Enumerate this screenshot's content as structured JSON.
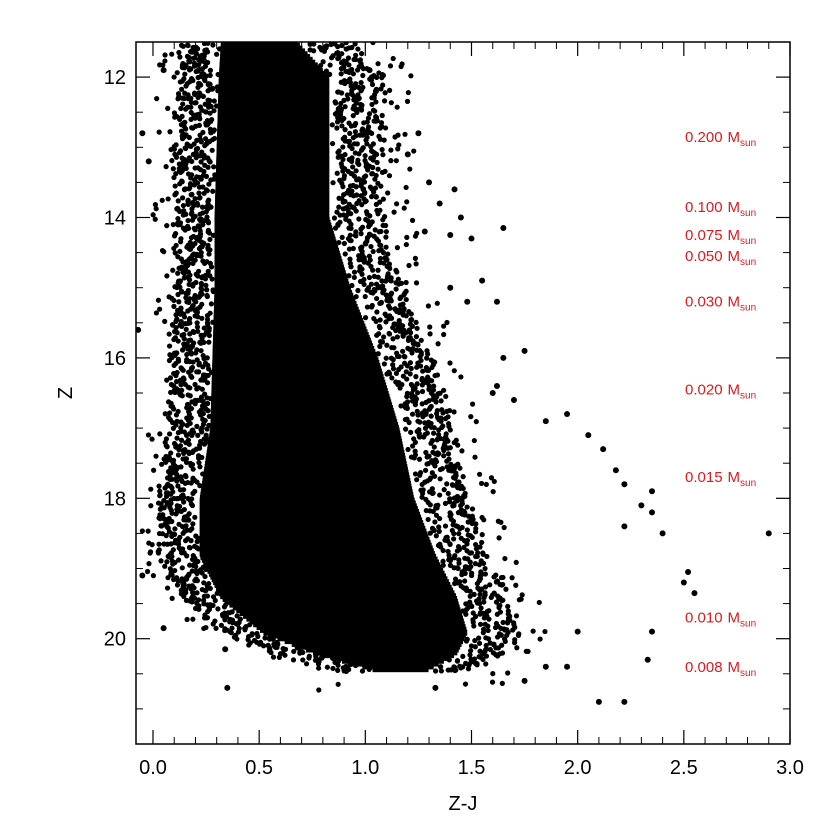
{
  "chart_data": {
    "type": "scatter",
    "title": "",
    "xlabel": "Z-J",
    "ylabel": "Z",
    "xlim": [
      -0.08,
      3.0
    ],
    "ylim": [
      21.5,
      11.5
    ],
    "y_inverted": true,
    "xticks": [
      0.0,
      0.5,
      1.0,
      1.5,
      2.0,
      2.5,
      3.0
    ],
    "xtick_labels": [
      "0.0",
      "0.5",
      "1.0",
      "1.5",
      "2.0",
      "2.5",
      "3.0"
    ],
    "yticks": [
      12,
      14,
      16,
      18,
      20
    ],
    "ytick_labels": [
      "12",
      "14",
      "16",
      "18",
      "20"
    ],
    "grid": false,
    "marker_color": "#000000",
    "annotation_color": "#e0191e",
    "main_locus": [
      {
        "z": 11.5,
        "left": 0.25,
        "right": 0.8
      },
      {
        "z": 12.0,
        "left": 0.24,
        "right": 0.95
      },
      {
        "z": 13.0,
        "left": 0.23,
        "right": 0.95
      },
      {
        "z": 14.0,
        "left": 0.22,
        "right": 0.95
      },
      {
        "z": 15.0,
        "left": 0.22,
        "right": 1.05
      },
      {
        "z": 16.0,
        "left": 0.21,
        "right": 1.18
      },
      {
        "z": 17.0,
        "left": 0.2,
        "right": 1.28
      },
      {
        "z": 18.0,
        "left": 0.15,
        "right": 1.35
      },
      {
        "z": 18.8,
        "left": 0.15,
        "right": 1.45
      },
      {
        "z": 19.4,
        "left": 0.25,
        "right": 1.55
      },
      {
        "z": 19.9,
        "left": 0.45,
        "right": 1.6
      },
      {
        "z": 20.2,
        "left": 0.7,
        "right": 1.55
      },
      {
        "z": 20.45,
        "left": 1.0,
        "right": 1.4
      }
    ],
    "sparse_points": [
      {
        "x": 1.02,
        "y": 11.9
      },
      {
        "x": 1.05,
        "y": 12.2
      },
      {
        "x": 1.25,
        "y": 12.8
      },
      {
        "x": 1.2,
        "y": 13.1
      },
      {
        "x": 1.3,
        "y": 13.5
      },
      {
        "x": 1.42,
        "y": 13.6
      },
      {
        "x": 1.35,
        "y": 13.8
      },
      {
        "x": 1.45,
        "y": 14.0
      },
      {
        "x": 1.28,
        "y": 14.2
      },
      {
        "x": 1.4,
        "y": 14.25
      },
      {
        "x": 1.5,
        "y": 14.3
      },
      {
        "x": 1.65,
        "y": 14.15
      },
      {
        "x": 1.1,
        "y": 14.6
      },
      {
        "x": 1.55,
        "y": 14.9
      },
      {
        "x": 1.4,
        "y": 15.0
      },
      {
        "x": 1.48,
        "y": 15.2
      },
      {
        "x": 1.62,
        "y": 15.2
      },
      {
        "x": 1.75,
        "y": 15.9
      },
      {
        "x": 1.65,
        "y": 16.0
      },
      {
        "x": 1.62,
        "y": 16.4
      },
      {
        "x": 1.7,
        "y": 16.6
      },
      {
        "x": 1.6,
        "y": 16.5
      },
      {
        "x": 1.95,
        "y": 16.8
      },
      {
        "x": 1.85,
        "y": 16.9
      },
      {
        "x": 2.05,
        "y": 17.1
      },
      {
        "x": 2.12,
        "y": 17.3
      },
      {
        "x": 2.18,
        "y": 17.6
      },
      {
        "x": 2.22,
        "y": 17.8
      },
      {
        "x": 2.3,
        "y": 18.1
      },
      {
        "x": 2.35,
        "y": 17.9
      },
      {
        "x": 2.4,
        "y": 18.5
      },
      {
        "x": 2.35,
        "y": 18.2
      },
      {
        "x": 2.22,
        "y": 18.4
      },
      {
        "x": 2.9,
        "y": 18.5
      },
      {
        "x": 2.5,
        "y": 19.2
      },
      {
        "x": 2.52,
        "y": 19.05
      },
      {
        "x": 2.55,
        "y": 19.35
      },
      {
        "x": 2.35,
        "y": 19.9
      },
      {
        "x": 2.33,
        "y": 20.3
      },
      {
        "x": 2.1,
        "y": 20.9
      },
      {
        "x": 2.22,
        "y": 20.9
      },
      {
        "x": 1.95,
        "y": 20.4
      },
      {
        "x": 1.75,
        "y": 20.6
      },
      {
        "x": 1.85,
        "y": 20.4
      },
      {
        "x": 2.0,
        "y": 19.9
      },
      {
        "x": 0.05,
        "y": 19.85
      },
      {
        "x": 0.35,
        "y": 20.7
      },
      {
        "x": 0.34,
        "y": 20.15
      },
      {
        "x": -0.05,
        "y": 19.1
      },
      {
        "x": -0.07,
        "y": 15.6
      },
      {
        "x": -0.02,
        "y": 13.2
      },
      {
        "x": 0.05,
        "y": 11.9
      },
      {
        "x": -0.05,
        "y": 12.8
      },
      {
        "x": 1.33,
        "y": 20.7
      }
    ],
    "annotations": [
      {
        "value": "0.200",
        "unit": "M",
        "sub": "sun",
        "z": 12.85
      },
      {
        "value": "0.100",
        "unit": "M",
        "sub": "sun",
        "z": 13.85
      },
      {
        "value": "0.075",
        "unit": "M",
        "sub": "sun",
        "z": 14.25
      },
      {
        "value": "0.050",
        "unit": "M",
        "sub": "sun",
        "z": 14.55
      },
      {
        "value": "0.030",
        "unit": "M",
        "sub": "sun",
        "z": 15.2
      },
      {
        "value": "0.020",
        "unit": "M",
        "sub": "sun",
        "z": 16.45
      },
      {
        "value": "0.015",
        "unit": "M",
        "sub": "sun",
        "z": 17.7
      },
      {
        "value": "0.010",
        "unit": "M",
        "sub": "sun",
        "z": 19.7
      },
      {
        "value": "0.008",
        "unit": "M",
        "sub": "sun",
        "z": 20.4
      }
    ]
  }
}
